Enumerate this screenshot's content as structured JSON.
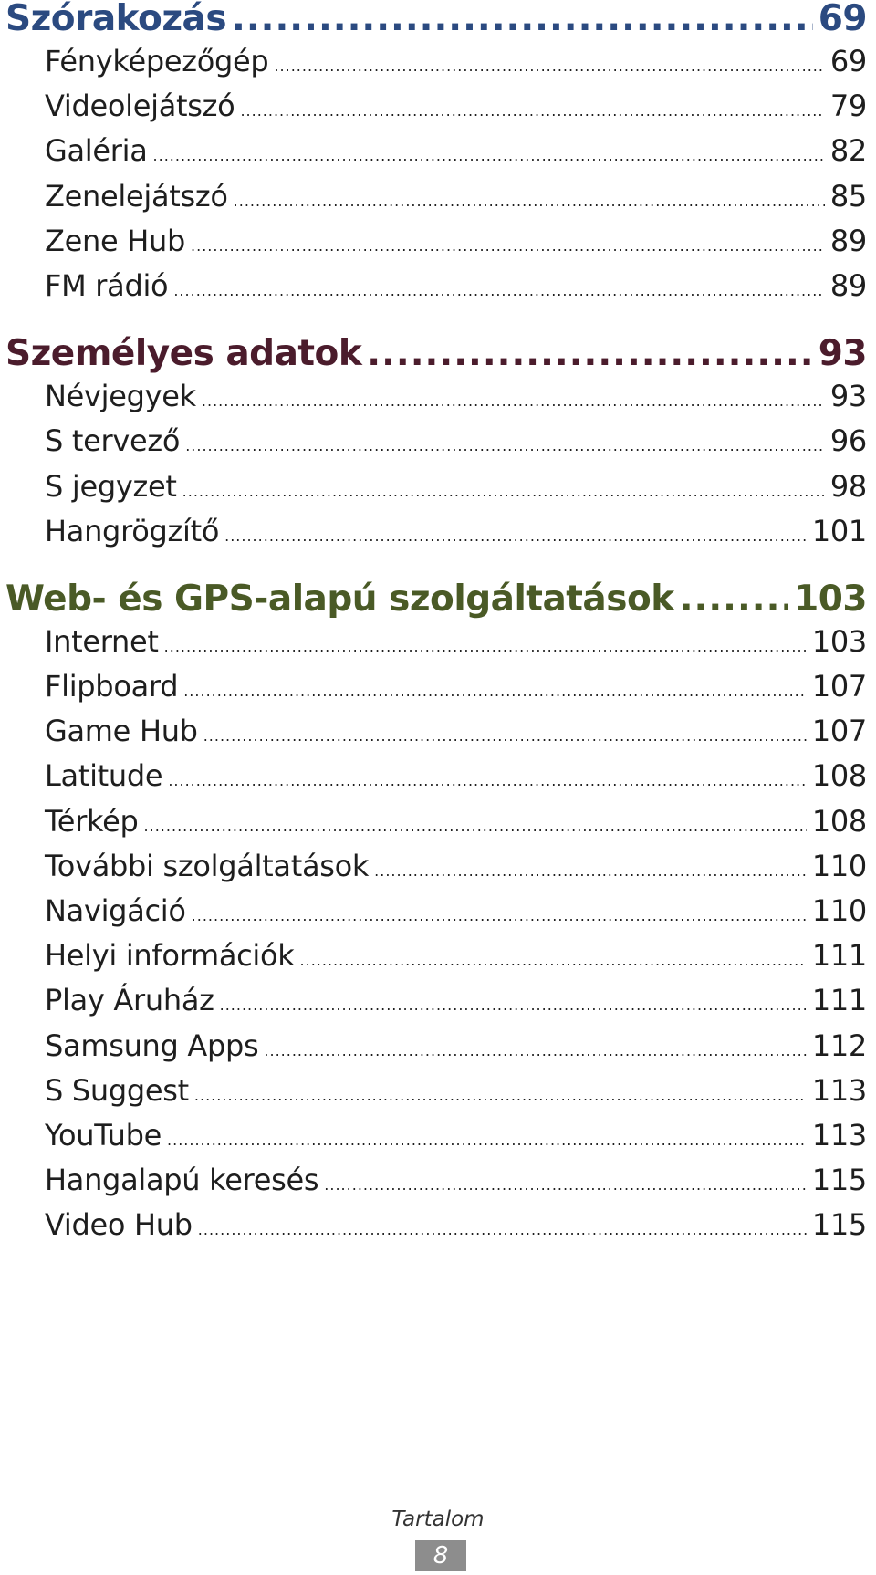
{
  "colors": {
    "section1": "#2b4a80",
    "section2": "#4b1c2c",
    "section3": "#4a5a26",
    "footer_box": "#8d8d8d"
  },
  "sections": [
    {
      "title": "Szórakozás",
      "page": "69",
      "items": [
        {
          "label": "Fényképezőgép",
          "page": "69"
        },
        {
          "label": "Videolejátszó",
          "page": "79"
        },
        {
          "label": "Galéria",
          "page": "82"
        },
        {
          "label": "Zenelejátszó",
          "page": "85"
        },
        {
          "label": "Zene Hub",
          "page": "89"
        },
        {
          "label": "FM rádió",
          "page": "89"
        }
      ]
    },
    {
      "title": "Személyes adatok",
      "page": "93",
      "items": [
        {
          "label": "Névjegyek",
          "page": "93"
        },
        {
          "label": "S tervező",
          "page": "96"
        },
        {
          "label": "S jegyzet",
          "page": "98"
        },
        {
          "label": "Hangrögzítő",
          "page": "101"
        }
      ]
    },
    {
      "title": "Web- és GPS-alapú szolgáltatások",
      "page": "103",
      "items": [
        {
          "label": "Internet",
          "page": "103"
        },
        {
          "label": "Flipboard",
          "page": "107"
        },
        {
          "label": "Game Hub",
          "page": "107"
        },
        {
          "label": "Latitude",
          "page": "108"
        },
        {
          "label": "Térkép",
          "page": "108"
        },
        {
          "label": "További szolgáltatások",
          "page": "110"
        },
        {
          "label": "Navigáció",
          "page": "110"
        },
        {
          "label": "Helyi információk",
          "page": "111"
        },
        {
          "label": "Play Áruház",
          "page": "111"
        },
        {
          "label": "Samsung Apps",
          "page": "112"
        },
        {
          "label": "S Suggest",
          "page": "113"
        },
        {
          "label": "YouTube",
          "page": "113"
        },
        {
          "label": "Hangalapú keresés",
          "page": "115"
        },
        {
          "label": "Video Hub",
          "page": "115"
        }
      ]
    }
  ],
  "footer": {
    "label": "Tartalom",
    "page_number": "8"
  }
}
